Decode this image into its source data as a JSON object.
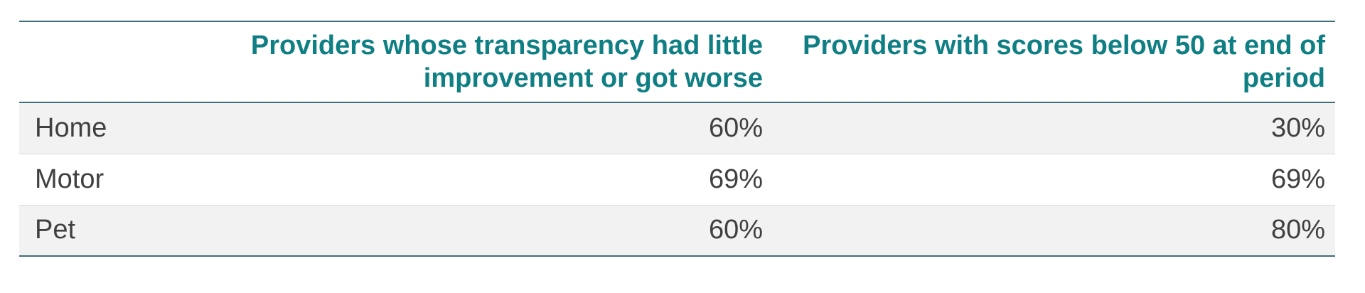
{
  "table": {
    "headers": [
      "",
      "Providers whose transparency had little improvement or got worse",
      "Providers with scores below 50 at end of period"
    ],
    "rows": [
      {
        "label": "Home",
        "improvement": "60%",
        "below50": "30%"
      },
      {
        "label": "Motor",
        "improvement": "69%",
        "below50": "69%"
      },
      {
        "label": "Pet",
        "improvement": "60%",
        "below50": "80%"
      }
    ]
  },
  "colors": {
    "header_text": "#0f7f84",
    "rule": "#3f6f78",
    "shaded_row": "#f2f2f2",
    "body_text": "#404040"
  }
}
